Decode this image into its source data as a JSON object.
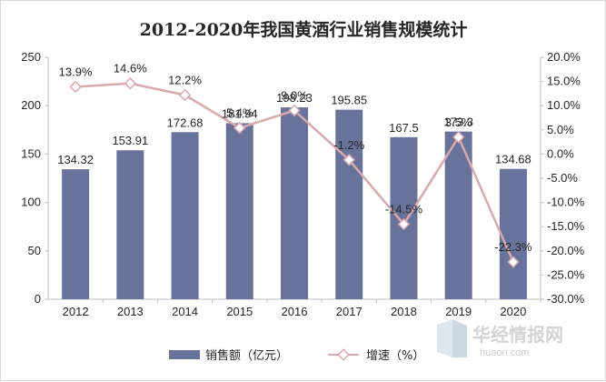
{
  "chart_data": {
    "type": "bar",
    "title": "2012-2020年我国黄酒行业销售规模统计",
    "categories": [
      "2012",
      "2013",
      "2014",
      "2015",
      "2016",
      "2017",
      "2018",
      "2019",
      "2020"
    ],
    "series": [
      {
        "name": "销售额（亿元）",
        "type": "bar",
        "axis": "left",
        "values": [
          134.32,
          153.91,
          172.68,
          181.94,
          198.23,
          195.85,
          167.5,
          173.3,
          134.68
        ],
        "labels": [
          "134.32",
          "153.91",
          "172.68",
          "181.94",
          "198.23",
          "195.85",
          "167.5",
          "173.3",
          "134.68"
        ],
        "color": "#68739b"
      },
      {
        "name": "增速（%）",
        "type": "line",
        "axis": "right",
        "values": [
          13.9,
          14.6,
          12.2,
          5.4,
          9.0,
          -1.2,
          -14.5,
          3.5,
          -22.3
        ],
        "labels": [
          "13.9%",
          "14.6%",
          "12.2%",
          "5.4%",
          "9.0%",
          "-1.2%",
          "-14.5%",
          "3.5%",
          "-22.3%"
        ],
        "color": "#d9a9ad"
      }
    ],
    "y_left": {
      "range": [
        0,
        250
      ],
      "ticks": [
        "0",
        "50",
        "100",
        "150",
        "200",
        "250"
      ]
    },
    "y_right": {
      "range": [
        -30,
        20
      ],
      "ticks": [
        "20.0%",
        "15.0%",
        "10.0%",
        "5.0%",
        "0.0%",
        "-5.0%",
        "-10.0%",
        "-15.0%",
        "-20.0%",
        "-25.0%",
        "-30.0%"
      ]
    },
    "grid": false,
    "legend_position": "bottom"
  },
  "watermark": {
    "name": "华经情报网",
    "url": "huaon.com"
  }
}
